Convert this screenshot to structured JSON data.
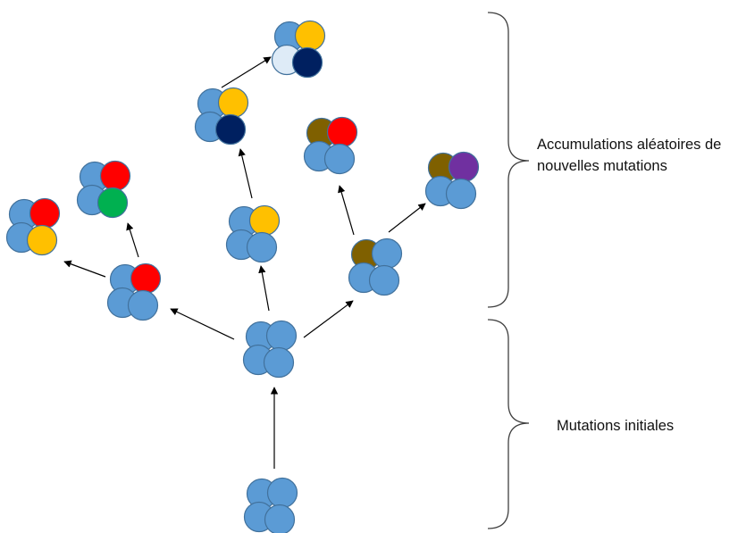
{
  "labels": {
    "accumulation_line1": "Accumulations aléatoires de",
    "accumulation_line2": "nouvelles mutations",
    "initial": "Mutations initiales"
  },
  "colors": {
    "cell_blue": "#5b9bd5",
    "cell_stroke": "#41719c",
    "yellow": "#ffc000",
    "red": "#ff0000",
    "green": "#00b050",
    "navy": "#002060",
    "light_blue": "#deebf7",
    "olive": "#7f6000",
    "purple": "#7030a0",
    "arrow": "#000000",
    "brace": "#404040"
  },
  "clusters": [
    {
      "id": "root",
      "mutations": [
        "blue",
        "blue",
        "blue",
        "blue"
      ]
    },
    {
      "id": "initial",
      "mutations": [
        "blue",
        "blue",
        "blue",
        "blue"
      ]
    },
    {
      "id": "left-mid",
      "mutations": [
        "blue",
        "red",
        "blue",
        "blue"
      ]
    },
    {
      "id": "far-left",
      "mutations": [
        "blue",
        "red",
        "blue",
        "yellow"
      ]
    },
    {
      "id": "left-upper",
      "mutations": [
        "blue",
        "red",
        "blue",
        "green"
      ]
    },
    {
      "id": "center-mid",
      "mutations": [
        "blue",
        "yellow",
        "blue",
        "blue"
      ]
    },
    {
      "id": "center-upper",
      "mutations": [
        "blue",
        "yellow",
        "blue",
        "navy"
      ]
    },
    {
      "id": "top",
      "mutations": [
        "blue",
        "yellow",
        "light_blue",
        "navy"
      ]
    },
    {
      "id": "right-mid",
      "mutations": [
        "olive",
        "blue",
        "blue",
        "blue"
      ]
    },
    {
      "id": "right-upper",
      "mutations": [
        "olive",
        "red",
        "blue",
        "blue"
      ]
    },
    {
      "id": "far-right",
      "mutations": [
        "olive",
        "purple",
        "blue",
        "blue"
      ]
    }
  ]
}
